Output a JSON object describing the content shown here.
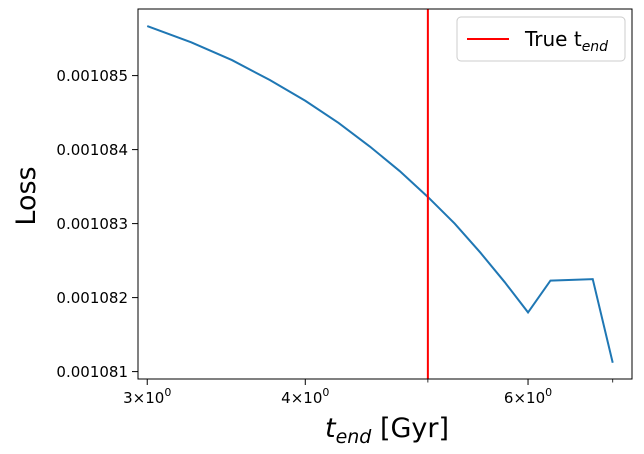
{
  "chart_data": {
    "type": "line",
    "xlabel_main": "t",
    "xlabel_sub": "end",
    "xlabel_unit": " [Gyr]",
    "ylabel": "Loss",
    "x_scale": "log",
    "xlim": [
      2.95,
      7.25
    ],
    "ylim": [
      0.0010809,
      0.0010859
    ],
    "x_ticks": [
      {
        "value": 3,
        "base": "3×10",
        "exp": "0"
      },
      {
        "value": 4,
        "base": "4×10",
        "exp": "0"
      },
      {
        "value": 6,
        "base": "6×10",
        "exp": "0"
      }
    ],
    "x_minor_ticks": [
      5,
      7
    ],
    "y_ticks": [
      {
        "value": 0.001081,
        "label": "0.001081"
      },
      {
        "value": 0.001082,
        "label": "0.001082"
      },
      {
        "value": 0.001083,
        "label": "0.001083"
      },
      {
        "value": 0.001084,
        "label": "0.001084"
      },
      {
        "value": 0.001085,
        "label": "0.001085"
      }
    ],
    "series": [
      {
        "color": "#1f77b4",
        "x": [
          3.0,
          3.25,
          3.5,
          3.75,
          4.0,
          4.25,
          4.5,
          4.75,
          5.0,
          5.25,
          5.5,
          5.75,
          6.0,
          6.25,
          6.5,
          6.75,
          7.0
        ],
        "y": [
          0.00108567,
          0.00108545,
          0.00108521,
          0.00108494,
          0.00108466,
          0.00108436,
          0.00108404,
          0.00108371,
          0.00108336,
          0.001083,
          0.00108261,
          0.00108221,
          0.0010818,
          0.00108223,
          0.00108224,
          0.00108225,
          0.00108112
        ]
      }
    ],
    "vline": {
      "x": 5.0,
      "color": "#ff0000"
    },
    "legend": {
      "position": "top-right",
      "label_main": "True t",
      "label_sub": "end",
      "color": "#ff0000"
    },
    "grid": false
  }
}
